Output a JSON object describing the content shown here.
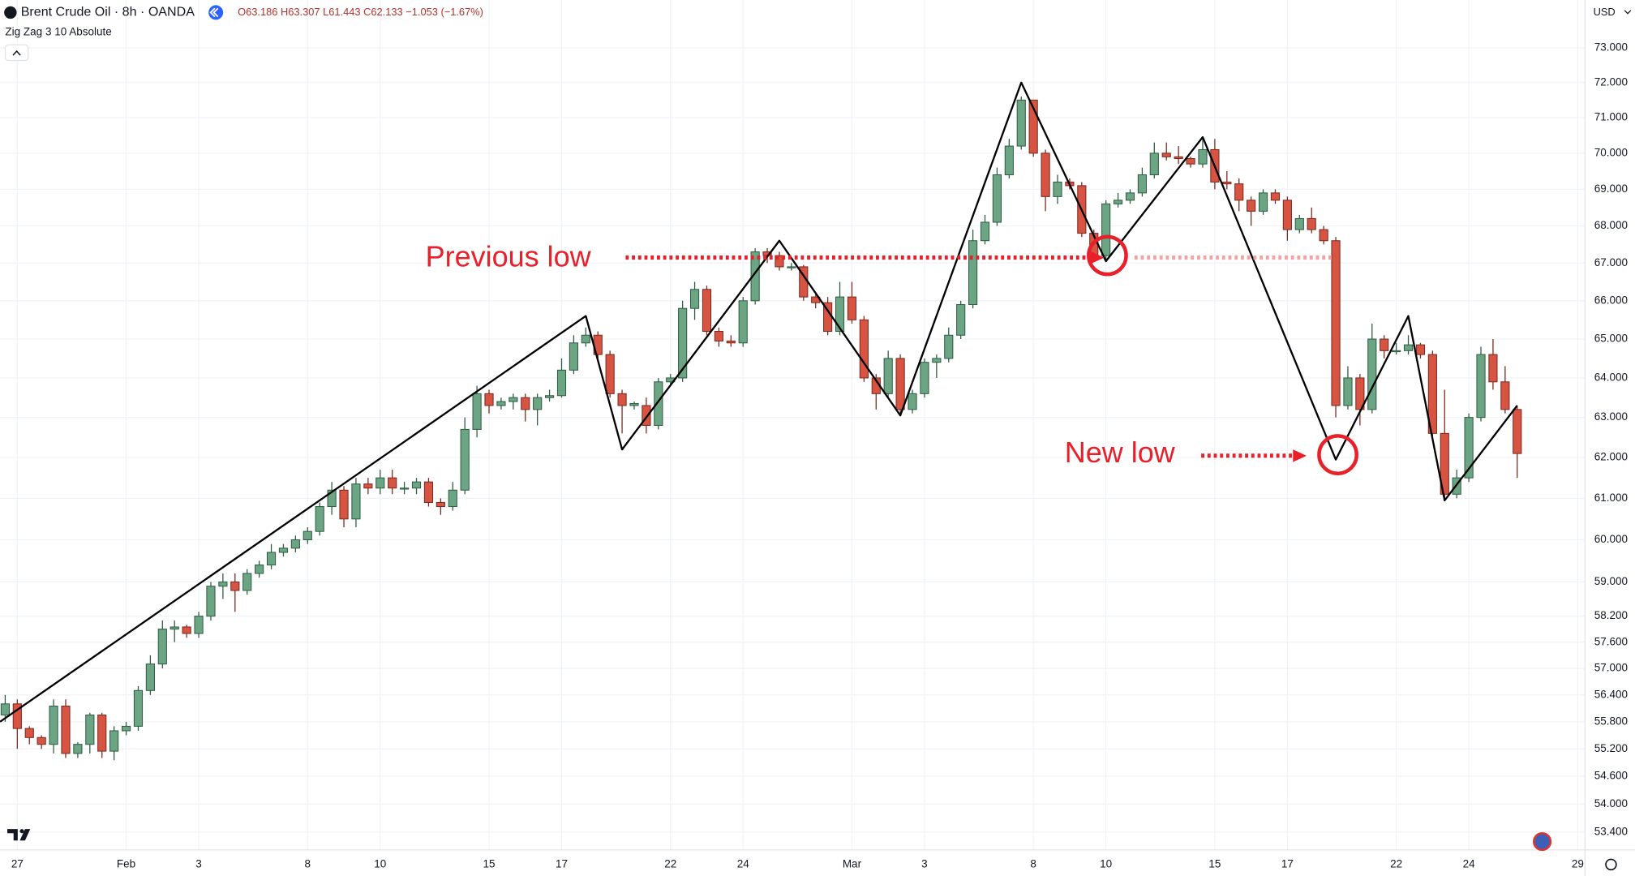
{
  "chart_data": {
    "type": "candlestick",
    "title": "Brent Crude Oil · 8h · OANDA",
    "ohlc_legend": "O63.186 H63.307 L61.443 C62.133 −1.053 (−1.67%)",
    "currency": "USD",
    "log_scale": true,
    "grid": true,
    "up_color": "#6ba583",
    "down_color": "#d75442",
    "open": [
      55.95,
      56.2,
      55.65,
      55.45,
      55.3,
      56.15,
      55.1,
      55.3,
      55.95,
      55.15,
      55.6,
      55.7,
      56.5,
      57.1,
      57.9,
      57.95,
      57.8,
      58.2,
      58.9,
      59.0,
      58.8,
      59.2,
      59.4,
      59.7,
      59.8,
      60.0,
      60.2,
      60.8,
      61.2,
      60.5,
      61.35,
      61.25,
      61.5,
      61.25,
      61.25,
      61.4,
      60.9,
      60.8,
      61.2,
      62.7,
      63.6,
      63.3,
      63.4,
      63.5,
      63.2,
      63.5,
      63.55,
      64.2,
      64.9,
      65.1,
      64.6,
      63.6,
      63.3,
      63.3,
      62.8,
      63.9,
      64.0,
      65.8,
      66.3,
      65.2,
      64.95,
      64.9,
      66.0,
      67.3,
      67.2,
      66.9,
      66.9,
      66.1,
      65.95,
      65.2,
      66.1,
      65.5,
      64.0,
      63.6,
      64.5,
      63.2,
      63.6,
      64.4,
      64.5,
      65.1,
      65.9,
      67.6,
      68.1,
      69.4,
      70.2,
      71.5,
      70.0,
      68.8,
      69.2,
      69.1,
      67.8,
      67.2,
      68.6,
      68.7,
      68.9,
      69.4,
      70.0,
      69.9,
      69.85,
      69.7,
      70.1,
      69.2,
      69.15,
      68.7,
      68.4,
      68.9,
      68.7,
      67.9,
      68.2,
      67.9,
      67.6,
      63.3,
      64.0,
      63.2,
      65.0,
      64.7,
      64.7,
      64.85,
      64.6,
      62.6,
      61.1,
      61.5,
      63.0,
      64.6,
      63.9,
      63.2
    ],
    "high": [
      56.4,
      56.3,
      55.7,
      55.5,
      56.3,
      56.3,
      55.35,
      56.0,
      56.0,
      55.7,
      55.8,
      56.6,
      57.3,
      58.1,
      58.1,
      58.0,
      58.3,
      59.0,
      59.2,
      59.2,
      59.3,
      59.5,
      59.9,
      59.9,
      60.1,
      60.3,
      60.9,
      61.4,
      61.3,
      61.5,
      61.5,
      61.7,
      61.7,
      61.4,
      61.5,
      61.5,
      61.0,
      61.4,
      63.0,
      63.8,
      63.7,
      63.5,
      63.6,
      63.6,
      63.6,
      63.7,
      64.5,
      65.1,
      65.3,
      65.2,
      64.7,
      63.7,
      63.4,
      63.5,
      64.0,
      64.1,
      66.0,
      66.5,
      66.4,
      65.3,
      65.1,
      66.1,
      67.4,
      67.4,
      67.3,
      67.0,
      66.95,
      66.2,
      66.1,
      66.5,
      66.5,
      65.6,
      64.1,
      64.7,
      64.6,
      63.7,
      64.5,
      64.6,
      65.3,
      66.0,
      67.9,
      68.3,
      69.6,
      70.4,
      71.6,
      71.5,
      70.1,
      69.4,
      69.3,
      69.2,
      67.9,
      68.7,
      68.9,
      69.0,
      69.6,
      70.3,
      70.3,
      70.2,
      69.9,
      70.4,
      70.4,
      69.5,
      69.3,
      68.8,
      69.0,
      69.0,
      68.8,
      68.3,
      68.5,
      68.0,
      67.7,
      64.3,
      64.1,
      65.4,
      65.1,
      64.9,
      65.1,
      64.9,
      64.7,
      63.7,
      61.7,
      63.1,
      64.8,
      65.0,
      64.3,
      63.3
    ],
    "low": [
      55.8,
      55.2,
      55.3,
      55.2,
      55.1,
      55.0,
      55.0,
      55.1,
      55.0,
      54.95,
      55.5,
      55.6,
      56.4,
      57.0,
      57.6,
      57.7,
      57.7,
      58.1,
      58.6,
      58.3,
      58.7,
      59.1,
      59.3,
      59.6,
      59.7,
      59.9,
      60.1,
      60.6,
      60.3,
      60.3,
      61.1,
      61.1,
      61.1,
      61.1,
      61.1,
      60.8,
      60.6,
      60.7,
      61.1,
      62.5,
      63.1,
      63.2,
      63.2,
      62.9,
      62.8,
      63.4,
      63.5,
      64.1,
      64.8,
      64.5,
      63.5,
      62.6,
      63.2,
      62.6,
      62.7,
      63.8,
      63.9,
      65.5,
      65.1,
      64.8,
      64.8,
      64.8,
      65.9,
      67.0,
      66.8,
      66.8,
      66.0,
      65.8,
      65.1,
      65.1,
      65.4,
      63.9,
      63.2,
      63.5,
      63.1,
      63.1,
      63.5,
      64.0,
      64.4,
      65.0,
      65.8,
      67.5,
      68.0,
      69.3,
      70.1,
      69.9,
      68.4,
      68.6,
      69.0,
      67.7,
      67.1,
      67.1,
      68.5,
      68.6,
      68.8,
      69.3,
      69.8,
      69.7,
      69.6,
      69.6,
      69.0,
      69.0,
      68.4,
      68.0,
      68.3,
      68.6,
      67.6,
      67.8,
      67.8,
      67.5,
      63.0,
      63.2,
      62.8,
      63.1,
      64.5,
      64.6,
      64.6,
      64.5,
      62.5,
      61.0,
      61.0,
      61.4,
      62.9,
      63.7,
      63.1,
      61.5
    ],
    "close": [
      56.2,
      55.65,
      55.45,
      55.3,
      56.15,
      55.1,
      55.3,
      55.95,
      55.15,
      55.6,
      55.7,
      56.5,
      57.1,
      57.9,
      57.95,
      57.8,
      58.2,
      58.9,
      59.0,
      58.8,
      59.2,
      59.4,
      59.7,
      59.8,
      60.0,
      60.2,
      60.8,
      61.2,
      60.5,
      61.35,
      61.25,
      61.5,
      61.25,
      61.25,
      61.4,
      60.9,
      60.8,
      61.2,
      62.7,
      63.6,
      63.3,
      63.4,
      63.5,
      63.2,
      63.5,
      63.55,
      64.2,
      64.9,
      65.1,
      64.6,
      63.6,
      63.3,
      63.35,
      62.8,
      63.9,
      64.0,
      65.8,
      66.3,
      65.2,
      64.95,
      64.9,
      66.0,
      67.3,
      67.2,
      66.9,
      66.9,
      66.1,
      65.95,
      65.2,
      66.1,
      65.5,
      64.0,
      63.6,
      64.5,
      63.2,
      63.6,
      64.4,
      64.5,
      65.1,
      65.9,
      67.6,
      68.1,
      69.4,
      70.2,
      71.5,
      70.0,
      68.8,
      69.2,
      69.1,
      67.8,
      67.2,
      68.6,
      68.7,
      68.9,
      69.4,
      70.0,
      69.9,
      69.85,
      69.7,
      70.1,
      69.2,
      69.15,
      68.7,
      68.4,
      68.9,
      68.7,
      67.9,
      68.2,
      67.9,
      67.6,
      63.3,
      64.0,
      63.2,
      65.0,
      64.7,
      64.7,
      64.85,
      64.6,
      62.6,
      61.1,
      61.5,
      63.0,
      64.6,
      63.9,
      63.2,
      62.1
    ],
    "zigzag": {
      "name": "Zig Zag 3 10 Absolute",
      "color": "#000000",
      "x": [
        -0.43,
        48,
        51,
        64,
        74,
        84,
        91,
        99,
        110,
        116,
        119,
        125
      ],
      "values": [
        55.8,
        65.6,
        62.2,
        67.6,
        63.05,
        72.0,
        67.05,
        70.45,
        61.95,
        65.6,
        60.95,
        63.3
      ]
    },
    "xlim": [
      -0.43,
      130.6
    ],
    "xticks": [
      {
        "value": 1,
        "label": "27"
      },
      {
        "value": 10,
        "label": "Feb"
      },
      {
        "value": 16,
        "label": "3"
      },
      {
        "value": 25,
        "label": "8"
      },
      {
        "value": 31,
        "label": "10"
      },
      {
        "value": 40,
        "label": "15"
      },
      {
        "value": 46,
        "label": "17"
      },
      {
        "value": 55,
        "label": "22"
      },
      {
        "value": 61,
        "label": "24"
      },
      {
        "value": 70,
        "label": "Mar"
      },
      {
        "value": 76,
        "label": "3"
      },
      {
        "value": 85,
        "label": "8"
      },
      {
        "value": 91,
        "label": "10"
      },
      {
        "value": 100,
        "label": "15"
      },
      {
        "value": 106,
        "label": "17"
      },
      {
        "value": 115,
        "label": "22"
      },
      {
        "value": 121,
        "label": "24"
      },
      {
        "value": 130,
        "label": "29"
      }
    ],
    "ylim": [
      53.02,
      74.41
    ],
    "yticks": [
      {
        "value": 73,
        "label": "73.000"
      },
      {
        "value": 72,
        "label": "72.000"
      },
      {
        "value": 71,
        "label": "71.000"
      },
      {
        "value": 70,
        "label": "70.000"
      },
      {
        "value": 69,
        "label": "69.000"
      },
      {
        "value": 68,
        "label": "68.000"
      },
      {
        "value": 67,
        "label": "67.000"
      },
      {
        "value": 66,
        "label": "66.000"
      },
      {
        "value": 65,
        "label": "65.000"
      },
      {
        "value": 64,
        "label": "64.000"
      },
      {
        "value": 63,
        "label": "63.000"
      },
      {
        "value": 62,
        "label": "62.000"
      },
      {
        "value": 61,
        "label": "61.000"
      },
      {
        "value": 60,
        "label": "60.000"
      },
      {
        "value": 59,
        "label": "59.000"
      },
      {
        "value": 58.2,
        "label": "58.200"
      },
      {
        "value": 57.6,
        "label": "57.600"
      },
      {
        "value": 57,
        "label": "57.000"
      },
      {
        "value": 56.4,
        "label": "56.400"
      },
      {
        "value": 55.8,
        "label": "55.800"
      },
      {
        "value": 55.2,
        "label": "55.200"
      },
      {
        "value": 54.6,
        "label": "54.600"
      },
      {
        "value": 54,
        "label": "54.000"
      },
      {
        "value": 53.4,
        "label": "53.400"
      }
    ],
    "annotations": [
      "Previous low",
      "New low"
    ]
  }
}
